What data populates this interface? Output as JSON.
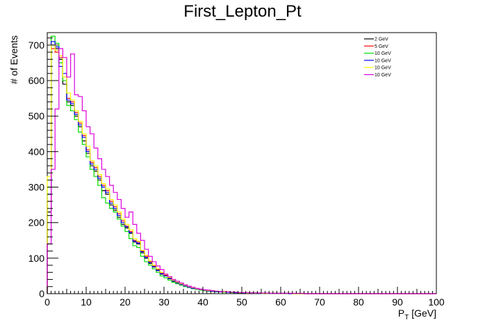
{
  "chart_data": {
    "type": "step",
    "title": "First_Lepton_Pt",
    "xlabel_main": "P",
    "xlabel_sub": "T",
    "xlabel_unit": " [GeV]",
    "ylabel": "# of Events",
    "xlim": [
      0,
      100
    ],
    "ylim": [
      0,
      735
    ],
    "x_ticks": [
      0,
      10,
      20,
      30,
      40,
      50,
      60,
      70,
      80,
      90,
      100
    ],
    "y_ticks": [
      0,
      100,
      200,
      300,
      400,
      500,
      600,
      700
    ],
    "bin_edges": [
      0,
      1,
      2,
      3,
      4,
      5,
      6,
      7,
      8,
      9,
      10,
      11,
      12,
      13,
      14,
      15,
      16,
      17,
      18,
      19,
      20,
      21,
      22,
      23,
      24,
      25,
      26,
      27,
      28,
      29,
      30,
      31,
      32,
      33,
      34,
      35,
      36,
      37,
      38,
      39,
      40,
      41,
      42,
      43,
      44,
      45,
      46,
      47,
      48,
      49,
      50,
      51,
      52,
      53,
      54,
      55,
      56,
      57,
      58,
      59,
      60,
      61,
      62,
      63,
      64,
      65,
      66,
      67,
      68,
      69,
      70,
      71,
      72,
      73,
      74,
      75,
      76,
      77,
      78,
      79,
      80,
      81,
      82,
      83,
      84,
      85,
      86,
      87,
      88,
      89,
      90,
      91,
      92,
      93,
      94,
      95,
      96,
      97,
      98,
      99,
      100
    ],
    "legend_position": "top-right",
    "series": [
      {
        "name": "2 GeV",
        "color": "#000000",
        "values": [
          230,
          700,
          690,
          660,
          590,
          540,
          530,
          500,
          470,
          430,
          395,
          360,
          345,
          320,
          290,
          280,
          250,
          235,
          215,
          195,
          185,
          170,
          145,
          140,
          115,
          100,
          85,
          75,
          65,
          55,
          50,
          42,
          35,
          30,
          26,
          22,
          18,
          15,
          13,
          11,
          9,
          8,
          7,
          6,
          5,
          5,
          4,
          4,
          3,
          3,
          2,
          2,
          2,
          2,
          1,
          1,
          1,
          1,
          1,
          1,
          1,
          1,
          0,
          0,
          0,
          0,
          0,
          0,
          0,
          0,
          0,
          0,
          0,
          0,
          0,
          0,
          0,
          0,
          0,
          0,
          0,
          0,
          0,
          0,
          0,
          0,
          0,
          0,
          0,
          0,
          0,
          0,
          0,
          0,
          0,
          0,
          0,
          0,
          0,
          0
        ]
      },
      {
        "name": "5 GeV",
        "color": "#ff0000",
        "values": [
          260,
          690,
          680,
          665,
          610,
          550,
          540,
          510,
          480,
          445,
          405,
          370,
          355,
          330,
          305,
          290,
          260,
          245,
          225,
          205,
          190,
          175,
          150,
          145,
          120,
          105,
          90,
          78,
          68,
          58,
          52,
          44,
          37,
          32,
          27,
          23,
          19,
          16,
          14,
          12,
          10,
          9,
          8,
          7,
          6,
          5,
          5,
          4,
          4,
          3,
          3,
          2,
          2,
          2,
          2,
          1,
          1,
          1,
          1,
          1,
          1,
          1,
          1,
          0,
          0,
          0,
          0,
          0,
          0,
          0,
          0,
          0,
          0,
          0,
          0,
          0,
          0,
          0,
          0,
          0,
          0,
          0,
          0,
          0,
          0,
          0,
          0,
          0,
          0,
          0,
          0,
          0,
          0,
          0,
          0,
          0,
          0,
          0,
          0,
          0
        ]
      },
      {
        "name": "10 GeV",
        "color": "#00dd00",
        "values": [
          300,
          725,
          705,
          650,
          600,
          530,
          515,
          490,
          455,
          420,
          385,
          350,
          330,
          305,
          270,
          255,
          240,
          230,
          210,
          190,
          175,
          155,
          135,
          130,
          105,
          90,
          80,
          70,
          60,
          50,
          45,
          38,
          32,
          28,
          24,
          20,
          17,
          14,
          12,
          10,
          8,
          7,
          6,
          5,
          5,
          4,
          4,
          3,
          3,
          2,
          2,
          2,
          2,
          1,
          1,
          1,
          1,
          1,
          1,
          1,
          1,
          0,
          0,
          0,
          0,
          0,
          0,
          0,
          0,
          0,
          0,
          0,
          0,
          0,
          0,
          0,
          0,
          0,
          0,
          0,
          0,
          0,
          0,
          0,
          0,
          0,
          0,
          0,
          0,
          0,
          0,
          0,
          0,
          0,
          0,
          0,
          0,
          0,
          0,
          0
        ]
      },
      {
        "name": "10 GeV",
        "color": "#0000ff",
        "values": [
          280,
          710,
          695,
          640,
          620,
          545,
          535,
          505,
          475,
          440,
          400,
          365,
          350,
          325,
          300,
          285,
          255,
          240,
          220,
          200,
          188,
          172,
          148,
          142,
          118,
          102,
          88,
          76,
          66,
          56,
          50,
          43,
          36,
          31,
          26,
          22,
          18,
          15,
          13,
          11,
          9,
          8,
          7,
          6,
          5,
          5,
          4,
          4,
          3,
          3,
          2,
          2,
          2,
          2,
          1,
          1,
          1,
          1,
          1,
          1,
          1,
          1,
          0,
          0,
          0,
          0,
          0,
          0,
          0,
          0,
          0,
          0,
          0,
          0,
          0,
          0,
          0,
          0,
          0,
          0,
          0,
          0,
          0,
          0,
          0,
          0,
          0,
          0,
          0,
          0,
          0,
          0,
          0,
          0,
          0,
          0,
          0,
          0,
          0,
          0
        ]
      },
      {
        "name": "10 GeV",
        "color": "#ffff00",
        "values": [
          330,
          700,
          685,
          670,
          610,
          565,
          545,
          515,
          485,
          450,
          415,
          375,
          360,
          335,
          310,
          295,
          265,
          250,
          230,
          210,
          195,
          180,
          155,
          148,
          122,
          108,
          92,
          80,
          70,
          60,
          54,
          46,
          38,
          33,
          28,
          24,
          20,
          17,
          14,
          12,
          10,
          9,
          8,
          7,
          6,
          5,
          5,
          4,
          4,
          3,
          3,
          2,
          2,
          2,
          2,
          1,
          1,
          1,
          1,
          1,
          1,
          1,
          1,
          0,
          0,
          0,
          0,
          0,
          0,
          0,
          0,
          0,
          0,
          0,
          0,
          0,
          0,
          0,
          0,
          0,
          0,
          0,
          0,
          0,
          0,
          0,
          0,
          0,
          0,
          0,
          0,
          0,
          0,
          0,
          0,
          0,
          0,
          0,
          0,
          0
        ]
      },
      {
        "name": "10 GeV",
        "color": "#dd00dd",
        "values": [
          140,
          350,
          520,
          690,
          665,
          610,
          675,
          560,
          555,
          515,
          470,
          450,
          410,
          380,
          350,
          330,
          305,
          285,
          265,
          240,
          215,
          230,
          195,
          170,
          150,
          125,
          105,
          90,
          78,
          68,
          55,
          48,
          40,
          35,
          30,
          25,
          21,
          18,
          15,
          13,
          11,
          10,
          8,
          7,
          6,
          6,
          5,
          4,
          4,
          3,
          3,
          3,
          2,
          2,
          2,
          2,
          2,
          1,
          1,
          1,
          1,
          1,
          1,
          1,
          1,
          1,
          0,
          0,
          0,
          0,
          0,
          0,
          0,
          0,
          0,
          0,
          0,
          0,
          0,
          0,
          0,
          0,
          0,
          0,
          0,
          0,
          0,
          0,
          0,
          0,
          0,
          0,
          0,
          0,
          0,
          0,
          0,
          0,
          0,
          0
        ]
      }
    ]
  }
}
